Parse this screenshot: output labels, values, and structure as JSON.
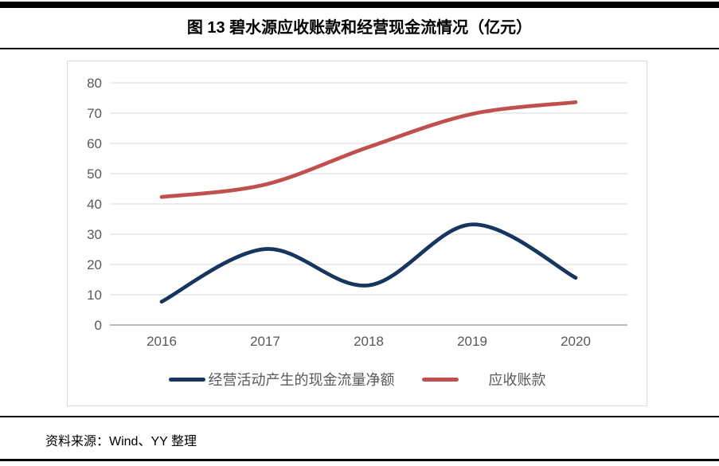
{
  "figure": {
    "title": "图 13 碧水源应收账款和经营现金流情况（亿元）",
    "source": "资料来源：Wind、YY 整理"
  },
  "chart_data": {
    "type": "line",
    "title": "图 13 碧水源应收账款和经营现金流情况（亿元）",
    "categories": [
      "2016",
      "2017",
      "2018",
      "2019",
      "2020"
    ],
    "series": [
      {
        "name": "经营活动产生的现金流量净额",
        "color": "#17365D",
        "values": [
          7.7,
          25.1,
          13.1,
          33.2,
          15.6
        ]
      },
      {
        "name": "应收账款",
        "color": "#C0504D",
        "values": [
          42.3,
          46.4,
          58.8,
          69.7,
          73.6
        ]
      }
    ],
    "xlabel": "",
    "ylabel": "",
    "ylim": [
      0,
      80
    ],
    "yticks": [
      0,
      10,
      20,
      30,
      40,
      50,
      60,
      70,
      80
    ],
    "grid": true,
    "smooth": true,
    "legend_position": "bottom"
  },
  "colors": {
    "gridline": "#D9D9D9",
    "zero_axis_line": "#A6A6A6",
    "tick_label": "#595959",
    "legend_text": "#595959",
    "frame_border": "#D9D9D9",
    "rule": "#000000"
  }
}
